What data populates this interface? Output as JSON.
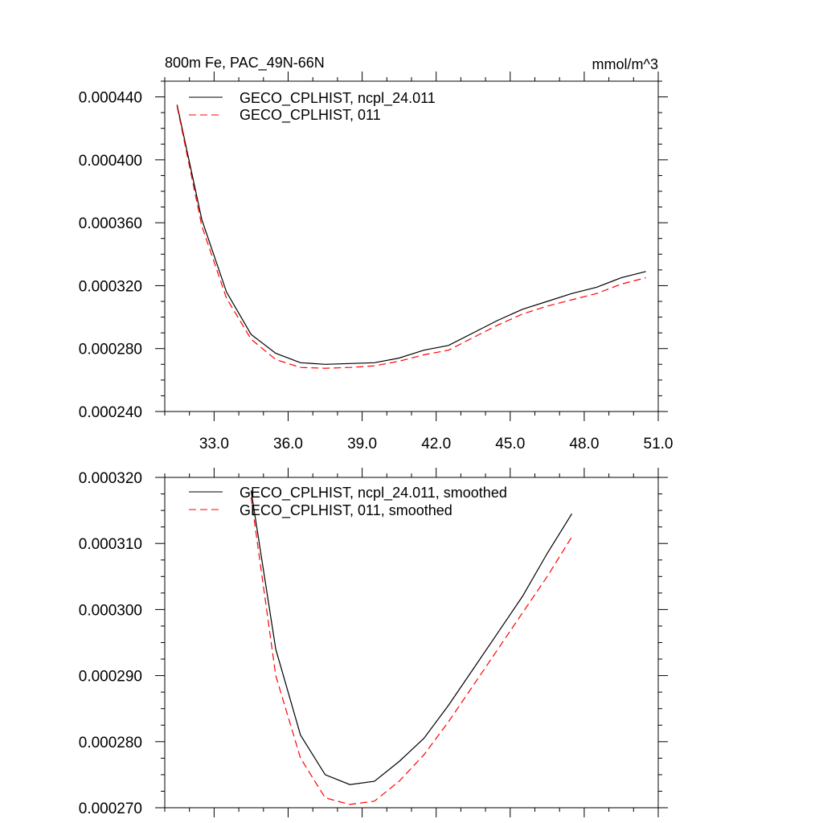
{
  "chart_data": [
    {
      "type": "line",
      "title": "800m Fe, PAC_49N-66N",
      "units": "mmol/m^3",
      "xlim": [
        31.0,
        51.0
      ],
      "ylim": [
        0.00024,
        0.00045
      ],
      "xticks": [
        "33.0",
        "36.0",
        "39.0",
        "42.0",
        "45.0",
        "48.0",
        "51.0"
      ],
      "yticks": [
        "0.000240",
        "0.000280",
        "0.000320",
        "0.000360",
        "0.000400",
        "0.000440"
      ],
      "legend": "top-left",
      "x": [
        31.5,
        32.5,
        33.5,
        34.5,
        35.5,
        36.5,
        37.5,
        38.5,
        39.5,
        40.5,
        41.5,
        42.5,
        43.5,
        44.5,
        45.5,
        46.5,
        47.5,
        48.5,
        49.5,
        50.5
      ],
      "series": [
        {
          "name": "GECO_CPLHIST, ncpl_24.011",
          "color": "#000000",
          "dash": "solid",
          "values": [
            0.000435,
            0.000362,
            0.000316,
            0.000289,
            0.000277,
            0.000271,
            0.00027,
            0.0002705,
            0.000271,
            0.000274,
            0.000279,
            0.000282,
            0.00029,
            0.000298,
            0.000305,
            0.00031,
            0.000315,
            0.000319,
            0.000325,
            0.000329
          ]
        },
        {
          "name": "GECO_CPLHIST, 011",
          "color": "#ff0000",
          "dash": "dashed",
          "values": [
            0.000434,
            0.000358,
            0.000312,
            0.000286,
            0.000273,
            0.000268,
            0.0002675,
            0.000268,
            0.000269,
            0.000272,
            0.000276,
            0.000279,
            0.000287,
            0.000295,
            0.000302,
            0.000307,
            0.000311,
            0.000315,
            0.000321,
            0.000325
          ]
        }
      ]
    },
    {
      "type": "line",
      "xlim": [
        31.0,
        51.0
      ],
      "ylim": [
        0.00027,
        0.00032
      ],
      "yticks": [
        "0.000270",
        "0.000280",
        "0.000290",
        "0.000300",
        "0.000310",
        "0.000320"
      ],
      "legend": "top-left",
      "x": [
        34.5,
        35.5,
        36.5,
        37.5,
        38.5,
        39.5,
        40.5,
        41.5,
        42.5,
        43.5,
        44.5,
        45.5,
        46.5,
        47.5
      ],
      "series": [
        {
          "name": "GECO_CPLHIST, ncpl_24.011, smoothed",
          "color": "#000000",
          "dash": "solid",
          "values": [
            0.000318,
            0.000294,
            0.000281,
            0.000275,
            0.0002735,
            0.000274,
            0.000277,
            0.0002805,
            0.0002855,
            0.000291,
            0.0002965,
            0.000302,
            0.0003085,
            0.0003145
          ]
        },
        {
          "name": "GECO_CPLHIST, 011, smoothed",
          "color": "#ff0000",
          "dash": "dashed",
          "values": [
            0.000317,
            0.00029,
            0.0002775,
            0.0002715,
            0.0002705,
            0.000271,
            0.000274,
            0.000278,
            0.000283,
            0.0002885,
            0.000294,
            0.0002995,
            0.000305,
            0.000311
          ]
        }
      ]
    }
  ]
}
